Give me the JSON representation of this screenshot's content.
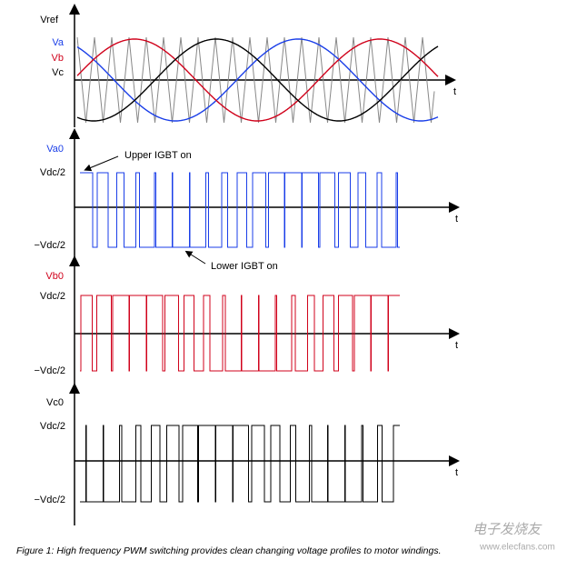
{
  "panels": [
    {
      "labels": [
        "Vref",
        "Va",
        "Vb",
        "Vc"
      ],
      "axis": "t"
    },
    {
      "label": "Va0",
      "high": "Vdc/2",
      "low": "−Vdc/2",
      "axis": "t",
      "annotations": [
        "Upper IGBT on",
        "Lower IGBT on"
      ]
    },
    {
      "label": "Vb0",
      "high": "Vdc/2",
      "low": "−Vdc/2",
      "axis": "t"
    },
    {
      "label": "Vc0",
      "high": "Vdc/2",
      "low": "−Vdc/2",
      "axis": "t"
    }
  ],
  "caption": "Figure 1: High frequency PWM switching provides clean changing voltage profiles to motor windings.",
  "watermark": {
    "name": "电子发烧友",
    "url": "www.elecfans.com"
  }
}
